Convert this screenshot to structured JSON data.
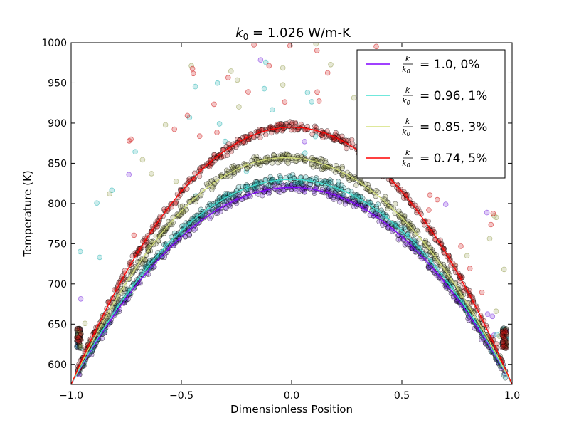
{
  "chart_data": {
    "type": "scatter",
    "title": {
      "k_symbol": "k",
      "k_subscript": "0",
      "text": " = 1.026 W/m-K"
    },
    "xlabel": "Dimensionless Position",
    "ylabel": "Temperature (K)",
    "xlim": [
      -1.0,
      1.0
    ],
    "ylim": [
      575,
      1000
    ],
    "x_ticks": [
      -1.0,
      -0.5,
      0.0,
      0.5,
      1.0
    ],
    "x_tick_labels": [
      "−1.0",
      "−0.5",
      "0.0",
      "0.5",
      "1.0"
    ],
    "y_ticks": [
      600,
      650,
      700,
      750,
      800,
      850,
      900,
      950,
      1000
    ],
    "y_tick_labels": [
      "600",
      "650",
      "700",
      "750",
      "800",
      "850",
      "900",
      "950",
      "1000"
    ],
    "grid": false,
    "legend_position": "top-right",
    "boundary_temperature": 575,
    "series": [
      {
        "legend_value": "= 1.0, 0%",
        "peak_temperature": 820,
        "peak_position": 0.0,
        "line_color": "#8000ff",
        "marker_color": "#7b2fe0"
      },
      {
        "legend_value": "= 0.96, 1%",
        "peak_temperature": 830,
        "peak_position": 0.0,
        "line_color": "#40e0d0",
        "marker_color": "#2bb5b5"
      },
      {
        "legend_value": "= 0.85, 3%",
        "peak_temperature": 857,
        "peak_position": -0.03,
        "line_color": "#d4e07a",
        "marker_color": "#9aa257"
      },
      {
        "legend_value": "= 0.74, 5%",
        "peak_temperature": 895,
        "peak_position": 0.0,
        "line_color": "#ff0000",
        "marker_color": "#d01818"
      }
    ],
    "legend_fraction": {
      "numerator": "k",
      "denominator": "k",
      "denominator_subscript": "0"
    }
  }
}
